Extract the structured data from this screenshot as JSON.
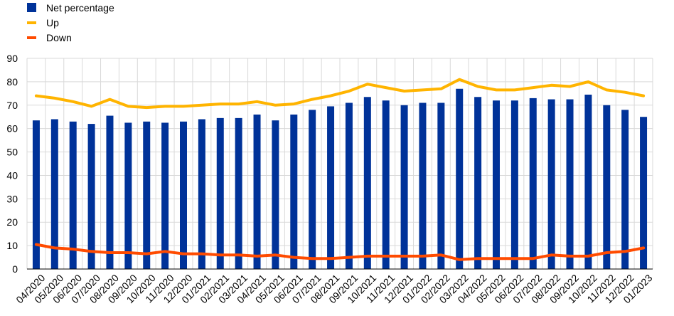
{
  "chart_data": {
    "type": "bar",
    "categories": [
      "04/2020",
      "05/2020",
      "06/2020",
      "07/2020",
      "08/2020",
      "09/2020",
      "10/2020",
      "11/2020",
      "12/2020",
      "01/2021",
      "02/2021",
      "03/2021",
      "04/2021",
      "05/2021",
      "06/2021",
      "07/2021",
      "08/2021",
      "09/2021",
      "10/2021",
      "11/2021",
      "12/2021",
      "01/2022",
      "02/2022",
      "03/2022",
      "04/2022",
      "05/2022",
      "06/2022",
      "07/2022",
      "08/2022",
      "09/2022",
      "10/2022",
      "11/2022",
      "12/2022",
      "01/2023"
    ],
    "series": [
      {
        "name": "Net percentage",
        "type": "bar",
        "color": "#003299",
        "values": [
          63.5,
          64,
          63,
          62,
          65.5,
          62.5,
          63,
          62.5,
          63,
          64,
          64.5,
          64.5,
          66,
          63.5,
          66,
          68,
          69.5,
          71,
          73.5,
          72,
          70,
          71,
          71,
          77,
          73.5,
          72,
          72,
          73,
          72.5,
          72.5,
          74.5,
          70,
          68,
          65
        ]
      },
      {
        "name": "Up",
        "type": "line",
        "color": "#FFB400",
        "values": [
          74,
          73,
          71.5,
          69.5,
          72.5,
          69.5,
          69,
          69.5,
          69.5,
          70,
          70.5,
          70.5,
          71.5,
          70,
          70.5,
          72.5,
          74,
          76,
          79,
          77.5,
          76,
          76.5,
          77,
          81,
          78,
          76.5,
          76.5,
          77.5,
          78.5,
          78,
          80,
          76.5,
          75.5,
          74
        ]
      },
      {
        "name": "Down",
        "type": "line",
        "color": "#FF4B00",
        "values": [
          10.5,
          9,
          8.5,
          7.5,
          7,
          7,
          6.5,
          7.5,
          6.5,
          6.5,
          6,
          6,
          5.5,
          6,
          5,
          4.5,
          4.5,
          5,
          5.5,
          5.5,
          5.5,
          5.5,
          6,
          4,
          4.5,
          4.5,
          4.5,
          4.5,
          6,
          5.5,
          5.5,
          7,
          7.5,
          9
        ]
      }
    ],
    "yaxis": {
      "min": 0,
      "max": 90,
      "ticks": [
        0,
        10,
        20,
        30,
        40,
        50,
        60,
        70,
        80,
        90
      ]
    },
    "grid": true,
    "legend_position": "top-left",
    "gridline_color": "#d9d9d9"
  }
}
